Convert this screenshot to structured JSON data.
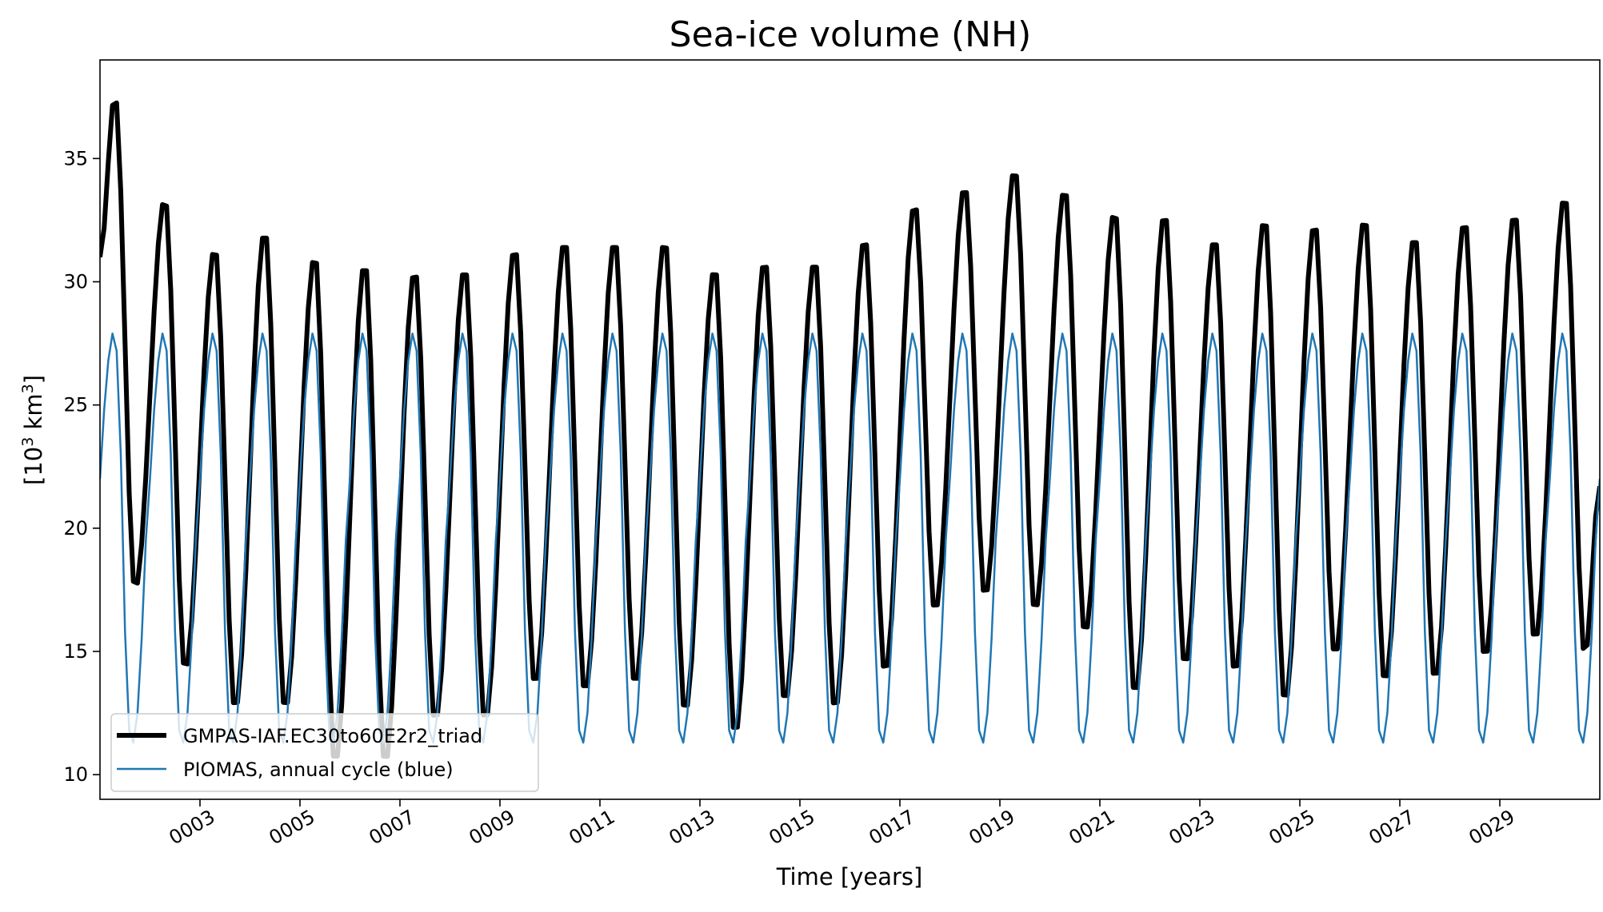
{
  "chart_data": {
    "type": "line",
    "title": "Sea-ice volume (NH)",
    "xlabel": "Time [years]",
    "ylabel_base": "[10",
    "ylabel_sup1": "3",
    "ylabel_mid": " km",
    "ylabel_sup2": "3",
    "ylabel_end": "]",
    "xlim": [
      1.0,
      31.0
    ],
    "ylim": [
      9.0,
      39.0
    ],
    "x_ticks": [
      {
        "value": 3,
        "label": "0003"
      },
      {
        "value": 5,
        "label": "0005"
      },
      {
        "value": 7,
        "label": "0007"
      },
      {
        "value": 9,
        "label": "0009"
      },
      {
        "value": 11,
        "label": "0011"
      },
      {
        "value": 13,
        "label": "0013"
      },
      {
        "value": 15,
        "label": "0015"
      },
      {
        "value": 17,
        "label": "0017"
      },
      {
        "value": 19,
        "label": "0019"
      },
      {
        "value": 21,
        "label": "0021"
      },
      {
        "value": 23,
        "label": "0023"
      },
      {
        "value": 25,
        "label": "0025"
      },
      {
        "value": 27,
        "label": "0027"
      },
      {
        "value": 29,
        "label": "0029"
      }
    ],
    "y_ticks": [
      {
        "value": 10,
        "label": "10"
      },
      {
        "value": 15,
        "label": "15"
      },
      {
        "value": 20,
        "label": "20"
      },
      {
        "value": 25,
        "label": "25"
      },
      {
        "value": 30,
        "label": "30"
      },
      {
        "value": 35,
        "label": "35"
      }
    ],
    "grid": false,
    "legend_position": "lower-left",
    "model_annual": {
      "years": [
        1,
        2,
        3,
        4,
        5,
        6,
        7,
        8,
        9,
        10,
        11,
        12,
        13,
        14,
        15,
        16,
        17,
        18,
        19,
        20,
        21,
        22,
        23,
        24,
        25,
        26,
        27,
        28,
        29,
        30
      ],
      "max": [
        37.6,
        33.4,
        31.4,
        32.1,
        31.1,
        30.8,
        30.5,
        30.6,
        31.4,
        31.7,
        31.7,
        31.7,
        30.6,
        30.9,
        30.9,
        31.8,
        33.2,
        33.9,
        34.6,
        33.8,
        32.9,
        32.8,
        31.8,
        32.6,
        32.4,
        32.6,
        31.9,
        32.5,
        32.8,
        33.5
      ],
      "min": [
        17.5,
        14.2,
        12.6,
        12.6,
        10.4,
        10.4,
        12.1,
        12.1,
        13.6,
        13.3,
        13.6,
        12.5,
        11.6,
        12.9,
        12.6,
        14.1,
        16.6,
        17.2,
        16.6,
        15.7,
        13.2,
        14.4,
        14.1,
        12.9,
        14.8,
        13.7,
        13.8,
        14.7,
        15.4,
        14.8
      ],
      "start": 31.0,
      "end": 21.7
    },
    "series": [
      {
        "name": "GMPAS-IAF.EC30to60E2r2_triad",
        "color": "#000000",
        "x": [],
        "y": []
      },
      {
        "name": "PIOMAS, annual cycle (blue)",
        "color": "#1f77b4",
        "monthly_cycle": [
          22.0,
          24.8,
          26.8,
          27.9,
          27.2,
          23.0,
          15.8,
          11.8,
          11.3,
          12.5,
          15.5,
          19.5
        ],
        "x": [],
        "y": []
      }
    ]
  }
}
